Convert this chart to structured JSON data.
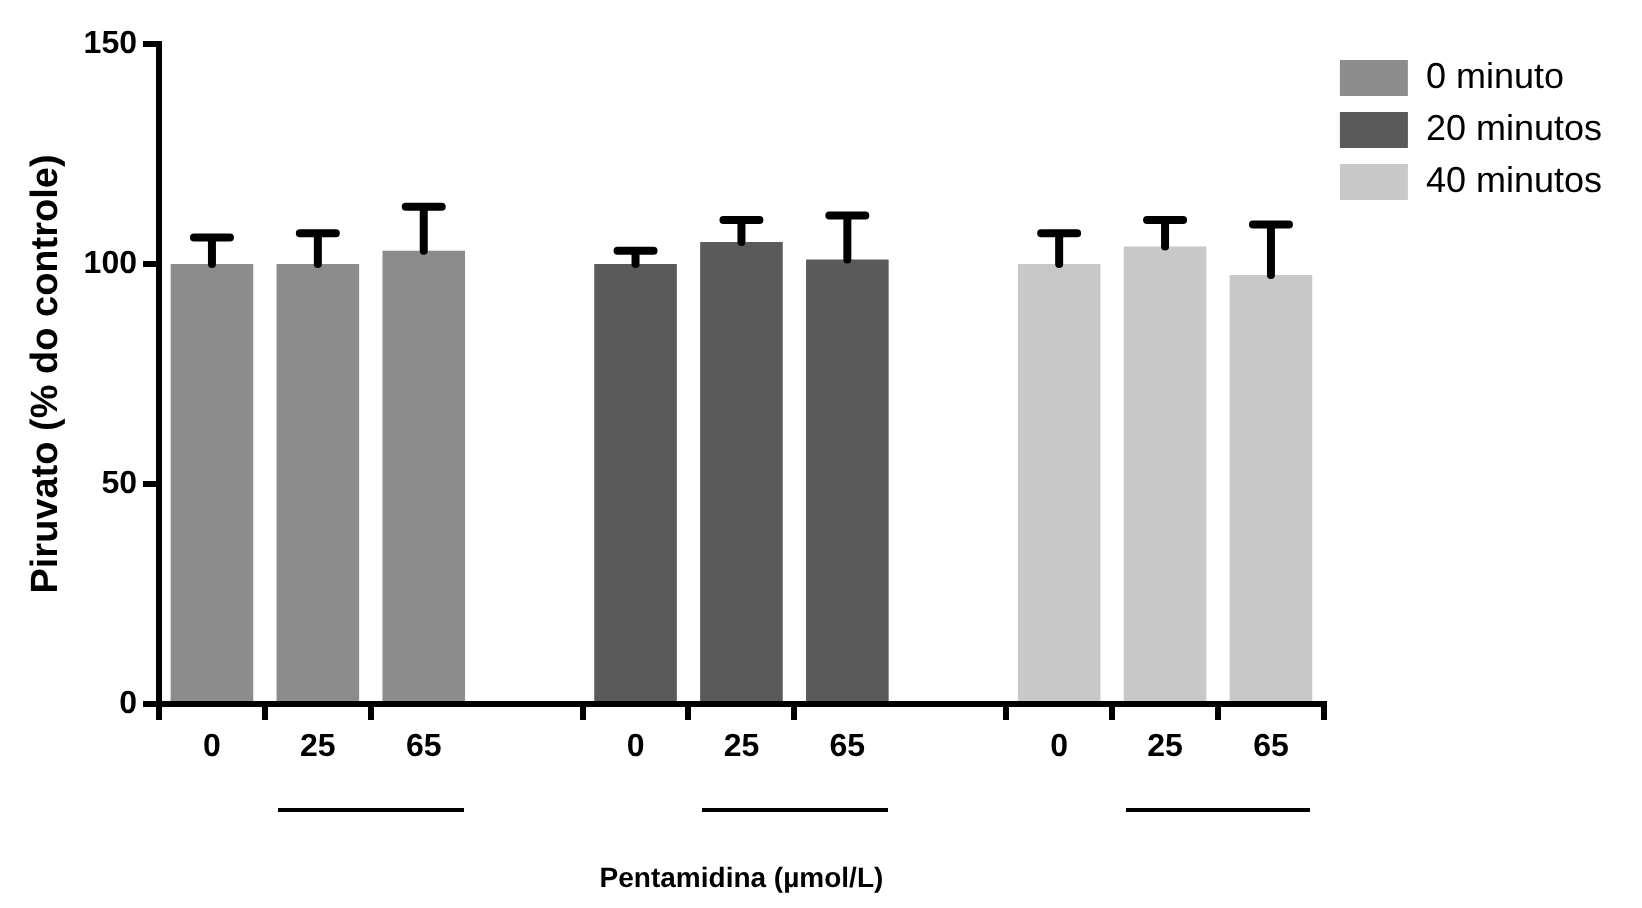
{
  "chart_data": {
    "type": "bar",
    "xlabel": "Pentamidina (µmol/L)",
    "ylabel": "Piruvato (% do controle)",
    "categories": [
      "0",
      "25",
      "65",
      null,
      "0",
      "25",
      "65",
      null,
      "0",
      "25",
      "65"
    ],
    "series": [
      {
        "name": "0 minuto",
        "color": "#8c8c8c",
        "values": [
          100,
          100,
          103,
          null,
          null,
          null,
          null,
          null,
          null,
          null,
          null
        ],
        "errors": [
          [
            100,
            106
          ],
          [
            100,
            107
          ],
          [
            103,
            113
          ],
          null,
          null,
          null,
          null,
          null,
          null,
          null,
          null
        ]
      },
      {
        "name": "20 minutos",
        "color": "#5a5a5a",
        "values": [
          null,
          null,
          null,
          null,
          100,
          105,
          101,
          null,
          null,
          null,
          null
        ],
        "errors": [
          null,
          null,
          null,
          null,
          [
            100,
            103
          ],
          [
            105,
            110
          ],
          [
            101,
            111
          ],
          null,
          null,
          null,
          null
        ]
      },
      {
        "name": "40 minutos",
        "color": "#c8c8c8",
        "values": [
          null,
          null,
          null,
          null,
          null,
          null,
          null,
          null,
          100,
          104,
          97.5
        ],
        "errors": [
          null,
          null,
          null,
          null,
          null,
          null,
          null,
          null,
          [
            100,
            107
          ],
          [
            104,
            110
          ],
          [
            97.5,
            109
          ]
        ]
      }
    ],
    "ylim": [
      0,
      150
    ],
    "yticks": [
      0,
      50,
      100,
      150
    ],
    "grid": false,
    "legend": "top right"
  }
}
